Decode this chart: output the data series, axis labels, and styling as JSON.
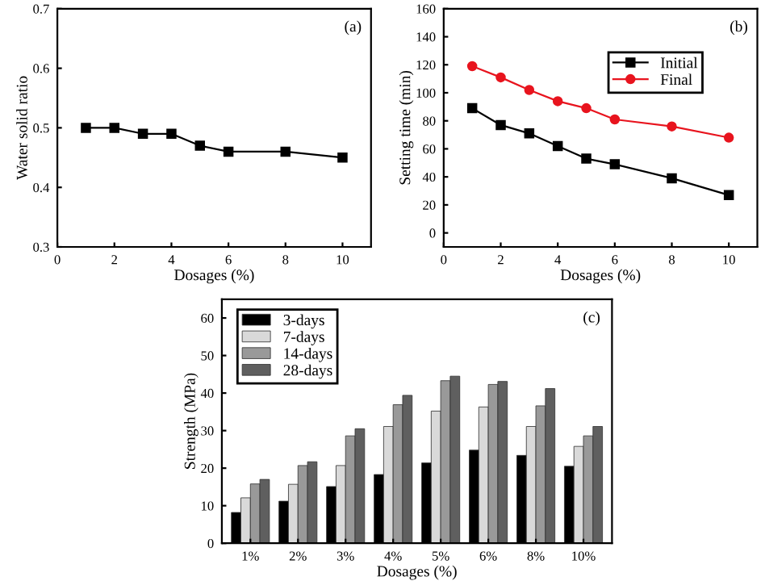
{
  "chart_data": [
    {
      "type": "line",
      "xlabel": "Dosages (%)",
      "ylabel": "Water solid ratio",
      "annotations": [
        "(a)"
      ],
      "x": [
        1,
        2,
        3,
        4,
        5,
        6,
        8,
        10
      ],
      "xlim": [
        0,
        11
      ],
      "xticks": [
        0,
        2,
        4,
        6,
        8,
        10
      ],
      "ylim": [
        0.3,
        0.7
      ],
      "yticks": [
        0.3,
        0.4,
        0.5,
        0.6,
        0.7
      ],
      "marker": "square",
      "grid": false,
      "legend": false,
      "series": [
        {
          "color": "#000000",
          "values": [
            0.5,
            0.5,
            0.49,
            0.49,
            0.47,
            0.46,
            0.46,
            0.45
          ]
        }
      ]
    },
    {
      "type": "line",
      "xlabel": "Dosages (%)",
      "ylabel": "Setting time (min)",
      "annotations": [
        "(b)"
      ],
      "x": [
        1,
        2,
        3,
        4,
        5,
        6,
        8,
        10
      ],
      "xlim": [
        0,
        11
      ],
      "xticks": [
        0,
        2,
        4,
        6,
        8,
        10
      ],
      "ylim": [
        -10,
        160
      ],
      "yticks": [
        0,
        20,
        40,
        60,
        80,
        100,
        120,
        140,
        160
      ],
      "grid": false,
      "legend": "top right",
      "series": [
        {
          "name": "Initial",
          "color": "#000000",
          "marker": "square",
          "values": [
            89,
            77,
            71,
            62,
            53,
            49,
            39,
            27
          ]
        },
        {
          "name": "Final",
          "color": "#e8141e",
          "marker": "circle",
          "values": [
            119,
            111,
            102,
            94,
            89,
            81,
            76,
            68
          ]
        }
      ]
    },
    {
      "type": "bar",
      "xlabel": "Dosages (%)",
      "ylabel": "Strength (MPa)",
      "annotations": [
        "(c)"
      ],
      "categories": [
        "1%",
        "2%",
        "3%",
        "4%",
        "5%",
        "6%",
        "8%",
        "10%"
      ],
      "ylim": [
        0,
        65
      ],
      "yticks": [
        0,
        10,
        20,
        30,
        40,
        50,
        60
      ],
      "grid": false,
      "legend": "top left",
      "series": [
        {
          "name": "3-days",
          "color": "#000000",
          "values": [
            8.2,
            11.2,
            15.1,
            18.3,
            21.4,
            24.8,
            23.4,
            20.5
          ]
        },
        {
          "name": "7-days",
          "color": "#d9d9d9",
          "values": [
            12.1,
            15.7,
            20.7,
            31.1,
            35.2,
            36.3,
            31.1,
            25.8
          ]
        },
        {
          "name": "14-days",
          "color": "#999999",
          "values": [
            15.8,
            20.7,
            28.6,
            36.9,
            43.3,
            42.3,
            36.6,
            28.6
          ]
        },
        {
          "name": "28-days",
          "color": "#5f5f5f",
          "values": [
            17.0,
            21.7,
            30.5,
            39.4,
            44.5,
            43.1,
            41.2,
            31.1
          ]
        }
      ]
    }
  ]
}
